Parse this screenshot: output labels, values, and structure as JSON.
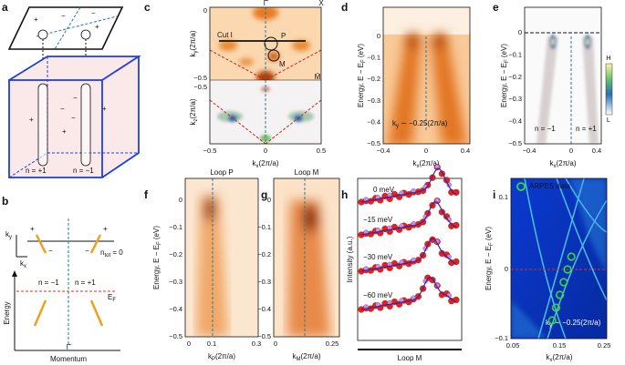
{
  "panels": {
    "a": {
      "letter": "a",
      "signs": [
        "+",
        "−",
        "−",
        "+",
        "+",
        "−",
        "+",
        "−",
        "+",
        "−"
      ],
      "labels": [
        "n = +1",
        "n = −1"
      ]
    },
    "b": {
      "letter": "b",
      "ky": {
        "main": "k",
        "sub": "y"
      },
      "kx": {
        "main": "k",
        "sub": "x"
      },
      "ntot": {
        "main": "n",
        "sub": "tot",
        "rest": " = 0"
      },
      "signs": [
        "+",
        "−",
        "−",
        "+"
      ],
      "n_labels": [
        "n = −1",
        "n = +1"
      ],
      "ef": {
        "main": "E",
        "sub": "F"
      },
      "ylabel": "Energy",
      "gamma": "Γ̄",
      "xlabel": "Momentum"
    },
    "c": {
      "letter": "c",
      "points": [
        "Γ̄",
        "X̄",
        "M̄"
      ],
      "cut": "Cut I",
      "loops": [
        "P",
        "M"
      ],
      "ylabel_top": {
        "main": "k",
        "sub": "y",
        "rest": "(2π/a)"
      },
      "ylabel_bottom": {
        "main": "k",
        "sub": "z",
        "rest": "(2π/a)"
      },
      "yticks_top": [
        "0",
        "−0.5"
      ],
      "yticks_bottom": [
        "−0.5"
      ],
      "xticks": [
        "−0.5",
        "0",
        "0.5"
      ],
      "xlabel": {
        "main": "k",
        "sub": "x",
        "rest": "(2π/a)"
      }
    },
    "d": {
      "letter": "d",
      "ylabel": {
        "main": "Energy, E − E",
        "sub": "F",
        "rest": " (eV)"
      },
      "yticks": [
        "0",
        "−0.1",
        "−0.2",
        "−0.3",
        "−0.4",
        "−0.5"
      ],
      "xticks": [
        "−0.4",
        "0",
        "0.4"
      ],
      "xlabel": {
        "main": "k",
        "sub": "x",
        "rest": "(2π/a)"
      },
      "note": {
        "main": "k",
        "sub": "y",
        "rest": " ∼ −0.25(2π/a)"
      }
    },
    "e": {
      "letter": "e",
      "ylabel": {
        "main": "Energy, E − E",
        "sub": "F",
        "rest": " (eV)"
      },
      "yticks": [
        "0",
        "−0.1",
        "−0.2",
        "−0.3",
        "−0.4",
        "−0.5"
      ],
      "xticks": [
        "−0.4",
        "0",
        "0.4"
      ],
      "xlabel": {
        "main": "k",
        "sub": "x",
        "rest": "(2π/a)"
      },
      "n_labels": [
        "n = −1",
        "n = +1"
      ],
      "colorbar": [
        "H",
        "L"
      ]
    },
    "f": {
      "letter": "f",
      "title": "Loop P",
      "ylabel": {
        "main": "Energy, E − E",
        "sub": "F",
        "rest": " (eV)"
      },
      "yticks": [
        "0",
        "−0.1",
        "−0.2",
        "−0.3",
        "−0.4",
        "−0.5"
      ],
      "xticks": [
        "0",
        "0.1",
        "0.3"
      ],
      "xlabel": {
        "main": "k",
        "sub": "P",
        "rest": "(2π/a)"
      }
    },
    "g": {
      "letter": "g",
      "title": "Loop M",
      "yticks": [
        "0",
        "−0.1",
        "−0.2",
        "−0.3",
        "−0.4",
        "−0.5"
      ],
      "xticks": [
        "0",
        "0.25"
      ],
      "xlabel": {
        "main": "k",
        "sub": "M",
        "rest": "(2π/a)"
      }
    },
    "h": {
      "letter": "h",
      "ylabel": "Intensity (a.u.)",
      "curves": [
        "0 meV",
        "−15 meV",
        "−30 meV",
        "−60 meV"
      ],
      "xlabel": "Loop M"
    },
    "i": {
      "letter": "i",
      "legend": "ARPES data",
      "ylabel": {
        "main": "Energy, E − E",
        "sub": "F",
        "rest": " (eV)"
      },
      "yticks": [
        "0.1",
        "0",
        "−0.1"
      ],
      "xticks": [
        "0.05",
        "0.15",
        "0.25"
      ],
      "xlabel": {
        "main": "k",
        "sub": "x",
        "rest": "(2π/a)"
      },
      "note": {
        "main": "k",
        "sub": "y",
        "rest": " ∼ −0.25(2π/a)"
      }
    }
  }
}
